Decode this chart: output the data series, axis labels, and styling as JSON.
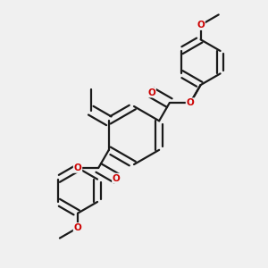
{
  "bg_color": "#f0f0f0",
  "bond_color": "#1a1a1a",
  "oxygen_color": "#cc0000",
  "lw": 1.6,
  "dbo": 0.012,
  "figsize": [
    3.0,
    3.0
  ],
  "dpi": 100,
  "xlim": [
    0.1,
    0.9
  ],
  "ylim": [
    0.02,
    0.98
  ]
}
